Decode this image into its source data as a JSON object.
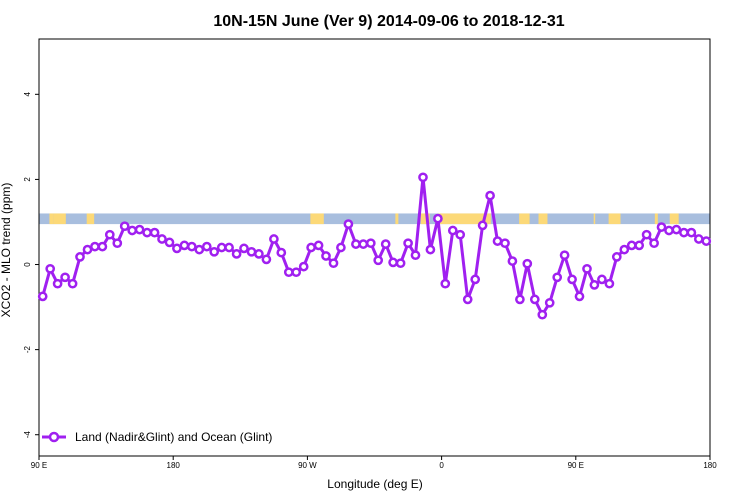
{
  "chart_data": {
    "type": "line",
    "title": "10N-15N June (Ver 9)   2014-09-06 to 2018-12-31",
    "xlabel": "Longitude (deg E)",
    "ylabel": "XCO2 - MLO trend (ppm)",
    "xlim": [
      90,
      540
    ],
    "ylim": [
      -4.5,
      5.3
    ],
    "x_ticks": [
      {
        "value": 90,
        "label": "90 E"
      },
      {
        "value": 180,
        "label": "180"
      },
      {
        "value": 270,
        "label": "90 W"
      },
      {
        "value": 360,
        "label": "0"
      },
      {
        "value": 450,
        "label": "90 E"
      },
      {
        "value": 540,
        "label": "180"
      }
    ],
    "y_ticks": [
      -4,
      -2,
      0,
      2,
      4
    ],
    "grid": false,
    "legend_position": "bottom-left",
    "series": [
      {
        "name": "Land (Nadir&Glint) and Ocean (Glint)",
        "color": "#a020f0",
        "x": [
          92.5,
          97.5,
          102.5,
          107.5,
          112.5,
          117.5,
          122.5,
          127.5,
          132.5,
          137.5,
          142.5,
          147.5,
          152.5,
          157.5,
          162.5,
          167.5,
          172.5,
          177.5,
          182.5,
          187.5,
          192.5,
          197.5,
          202.5,
          207.5,
          212.5,
          217.5,
          222.5,
          227.5,
          232.5,
          237.5,
          242.5,
          247.5,
          252.5,
          257.5,
          262.5,
          267.5,
          272.5,
          277.5,
          282.5,
          287.5,
          292.5,
          297.5,
          302.5,
          307.5,
          312.5,
          317.5,
          322.5,
          327.5,
          332.5,
          337.5,
          342.5,
          347.5,
          352.5,
          357.5,
          362.5,
          367.5,
          372.5,
          377.5,
          382.5,
          387.5,
          392.5,
          397.5,
          402.5,
          407.5,
          412.5,
          417.5,
          422.5,
          427.5,
          432.5,
          437.5,
          442.5,
          447.5,
          452.5,
          457.5,
          462.5,
          467.5,
          472.5,
          477.5,
          482.5,
          487.5,
          492.5,
          497.5,
          502.5,
          507.5,
          512.5,
          517.5,
          522.5,
          527.5,
          532.5,
          537.5
        ],
        "y": [
          -0.75,
          -0.1,
          -0.45,
          -0.3,
          -0.45,
          0.18,
          0.35,
          0.42,
          0.42,
          0.7,
          0.5,
          0.9,
          0.8,
          0.82,
          0.75,
          0.75,
          0.6,
          0.52,
          0.38,
          0.45,
          0.42,
          0.35,
          0.42,
          0.3,
          0.4,
          0.4,
          0.25,
          0.38,
          0.3,
          0.25,
          0.12,
          0.6,
          0.28,
          -0.18,
          -0.18,
          -0.05,
          0.4,
          0.45,
          0.2,
          0.03,
          0.4,
          0.95,
          0.48,
          0.48,
          0.5,
          0.1,
          0.48,
          0.05,
          0.03,
          0.5,
          0.22,
          2.05,
          0.35,
          1.08,
          -0.45,
          0.8,
          0.7,
          -0.82,
          -0.35,
          0.92,
          1.62,
          0.55,
          0.5,
          0.08,
          -0.82,
          0.02,
          -0.82,
          -1.18,
          -0.9,
          -0.3,
          0.22,
          -0.35,
          -0.75,
          -0.1,
          -0.48,
          -0.35,
          -0.45,
          0.18,
          0.35,
          0.45,
          0.45,
          0.7,
          0.5,
          0.88,
          0.8,
          0.82,
          0.75,
          0.75,
          0.6,
          0.55
        ]
      }
    ],
    "land_mask": {
      "bar_y_range": [
        0.95,
        1.2
      ],
      "ocean_color": "#a8bede",
      "land_color": "#fcd978",
      "land_x_spans": [
        [
          97,
          100
        ],
        [
          100,
          108
        ],
        [
          122,
          127
        ],
        [
          272,
          281
        ],
        [
          329,
          331
        ],
        [
          346,
          352
        ],
        [
          358,
          393
        ],
        [
          412,
          419
        ],
        [
          425,
          431
        ],
        [
          462,
          463
        ],
        [
          472,
          480
        ],
        [
          503,
          505
        ],
        [
          513,
          519
        ]
      ]
    }
  }
}
